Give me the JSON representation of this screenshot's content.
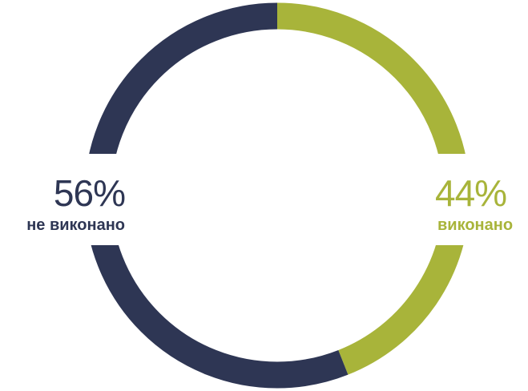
{
  "chart_data": {
    "type": "pie",
    "donut": true,
    "slices": [
      {
        "label": "не виконано",
        "value": 56,
        "display": "56%",
        "color": "#2e3654"
      },
      {
        "label": "виконано",
        "value": 44,
        "display": "44%",
        "color": "#a8b43a"
      }
    ]
  }
}
